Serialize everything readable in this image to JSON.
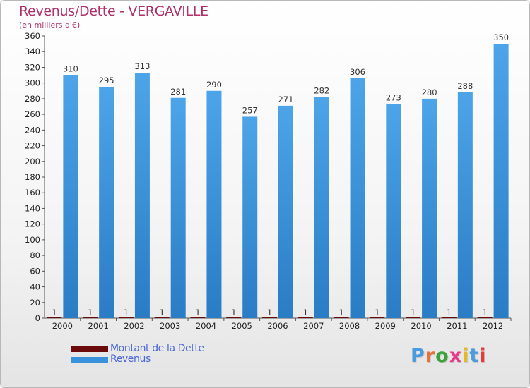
{
  "chart_data": {
    "type": "bar",
    "title": "Revenus/Dette - VERGAVILLE",
    "subtitle": "(en milliers d'€)",
    "categories": [
      "2000",
      "2001",
      "2002",
      "2003",
      "2004",
      "2005",
      "2006",
      "2007",
      "2008",
      "2009",
      "2010",
      "2011",
      "2012"
    ],
    "series": [
      {
        "name": "Montant de la Dette",
        "color": "#6b0a0a",
        "values": [
          1,
          1,
          1,
          1,
          1,
          1,
          1,
          1,
          1,
          1,
          1,
          1,
          1
        ]
      },
      {
        "name": "Revenus",
        "color": "#3a92dc",
        "values": [
          310,
          295,
          313,
          281,
          290,
          257,
          271,
          282,
          306,
          273,
          280,
          288,
          350
        ]
      }
    ],
    "ylim": [
      0,
      360
    ],
    "yticks": [
      0,
      20,
      40,
      60,
      80,
      100,
      120,
      140,
      160,
      180,
      200,
      220,
      240,
      260,
      280,
      300,
      320,
      340,
      360
    ],
    "grid": false,
    "legend": "bottom-left"
  },
  "logo": {
    "text": "Proxiti",
    "letter_colors": [
      "#4a9be0",
      "#e8703a",
      "#3aa23a",
      "#e83a8a",
      "#e8b820",
      "#4a9be0",
      "#e83a3a"
    ]
  }
}
